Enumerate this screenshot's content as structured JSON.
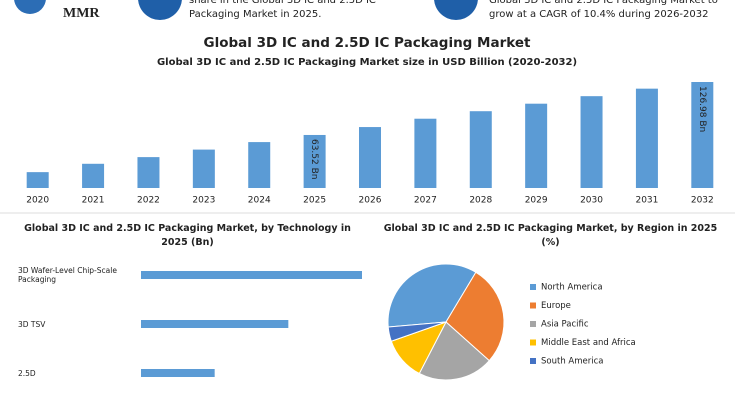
{
  "header": {
    "logo": "MMR",
    "note_left": [
      "share in the Global 3D IC and 2.5D IC",
      "Packaging Market in 2025."
    ],
    "note_right": [
      "Global 3D IC and 2.5D IC Packaging Market to",
      "grow at a CAGR of 10.4% during 2026-2032"
    ]
  },
  "title": "Global 3D IC and 2.5D IC Packaging Market",
  "chart_data": [
    {
      "type": "bar",
      "title": "Global 3D IC and 2.5D IC Packaging Market size in USD Billion (2020-2032)",
      "categories": [
        "2020",
        "2021",
        "2022",
        "2023",
        "2024",
        "2025",
        "2026",
        "2027",
        "2028",
        "2029",
        "2030",
        "2031",
        "2032"
      ],
      "values": [
        19,
        29,
        37,
        46,
        55,
        63.52,
        73,
        83,
        92,
        101,
        110,
        119,
        126.98
      ],
      "value_labels": [
        null,
        null,
        null,
        null,
        null,
        "63.52 Bn",
        null,
        null,
        null,
        null,
        null,
        null,
        "126.98 Bn"
      ],
      "color": "#5b9bd5"
    },
    {
      "type": "hbar",
      "title": "Global 3D IC and 2.5D IC Packaging Market, by Technology in 2025 (Bn)",
      "categories": [
        "3D Wafer-Level Chip-Scale Packaging",
        "3D TSV",
        "2.5D"
      ],
      "values": [
        31.8,
        21.2,
        10.6
      ],
      "color": "#5b9bd5"
    },
    {
      "type": "pie",
      "title": "Global 3D IC and 2.5D IC Packaging Market, by Region in 2025 (%)",
      "categories": [
        "North America",
        "Europe",
        "Asia Pacific",
        "Middle East and Africa",
        "South America"
      ],
      "values": [
        35,
        28,
        21,
        12,
        4
      ],
      "colors": [
        "#5b9bd5",
        "#ed7d31",
        "#a5a5a5",
        "#ffc000",
        "#4472c4"
      ]
    }
  ]
}
